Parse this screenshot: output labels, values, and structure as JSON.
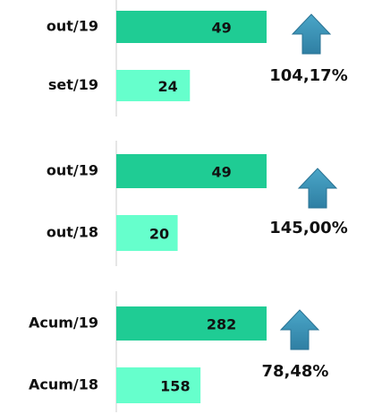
{
  "chart_data": [
    {
      "type": "hbar",
      "categories": [
        "out/19",
        "set/19"
      ],
      "values": [
        49,
        24
      ],
      "colors": [
        "#1fcc94",
        "#66ffcc"
      ],
      "annotation": "104,17%"
    },
    {
      "type": "hbar",
      "categories": [
        "out/19",
        "out/18"
      ],
      "values": [
        49,
        20
      ],
      "colors": [
        "#1fcc94",
        "#66ffcc"
      ],
      "annotation": "145,00%"
    },
    {
      "type": "hbar",
      "categories": [
        "Acum/19",
        "Acum/18"
      ],
      "values": [
        282,
        158
      ],
      "colors": [
        "#1fcc94",
        "#66ffcc"
      ],
      "annotation": "78,48%"
    }
  ]
}
